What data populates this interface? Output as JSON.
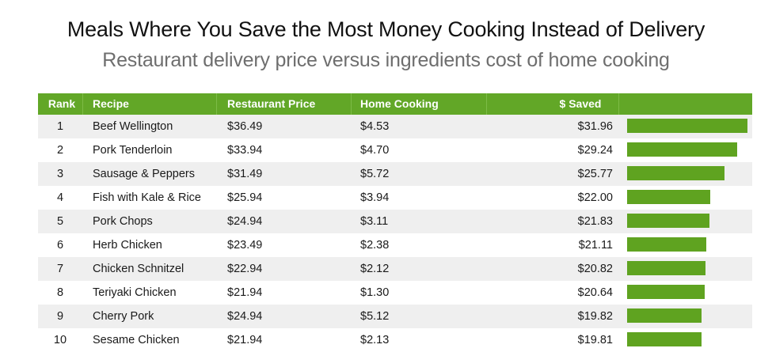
{
  "header": {
    "title": "Meals Where You Save the Most Money Cooking Instead of Delivery",
    "subtitle": "Restaurant delivery price versus ingredients cost of home cooking"
  },
  "table": {
    "columns": [
      "Rank",
      "Recipe",
      "Restaurant Price",
      "Home Cooking",
      "$ Saved"
    ],
    "rows": [
      {
        "rank": "1",
        "recipe": "Beef Wellington",
        "restaurant": "$36.49",
        "home": "$4.53",
        "saved": "$31.96"
      },
      {
        "rank": "2",
        "recipe": "Pork Tenderloin",
        "restaurant": "$33.94",
        "home": "$4.70",
        "saved": "$29.24"
      },
      {
        "rank": "3",
        "recipe": "Sausage & Peppers",
        "restaurant": "$31.49",
        "home": "$5.72",
        "saved": "$25.77"
      },
      {
        "rank": "4",
        "recipe": "Fish with Kale & Rice",
        "restaurant": "$25.94",
        "home": "$3.94",
        "saved": "$22.00"
      },
      {
        "rank": "5",
        "recipe": "Pork Chops",
        "restaurant": "$24.94",
        "home": "$3.11",
        "saved": "$21.83"
      },
      {
        "rank": "6",
        "recipe": "Herb Chicken",
        "restaurant": "$23.49",
        "home": "$2.38",
        "saved": "$21.11"
      },
      {
        "rank": "7",
        "recipe": "Chicken Schnitzel",
        "restaurant": "$22.94",
        "home": "$2.12",
        "saved": "$20.82"
      },
      {
        "rank": "8",
        "recipe": "Teriyaki Chicken",
        "restaurant": "$21.94",
        "home": "$1.30",
        "saved": "$20.64"
      },
      {
        "rank": "9",
        "recipe": "Cherry Pork",
        "restaurant": "$24.94",
        "home": "$5.12",
        "saved": "$19.82"
      },
      {
        "rank": "10",
        "recipe": "Sesame Chicken",
        "restaurant": "$21.94",
        "home": "$2.13",
        "saved": "$19.81"
      }
    ]
  },
  "colors": {
    "header_green": "#62a727",
    "bar_green": "#5fa320",
    "row_stripe": "#efefef"
  },
  "chart_data": {
    "type": "bar",
    "title": "Meals Where You Save the Most Money Cooking Instead of Delivery",
    "subtitle": "Restaurant delivery price versus ingredients cost of home cooking",
    "categories": [
      "Beef Wellington",
      "Pork Tenderloin",
      "Sausage & Peppers",
      "Fish with Kale & Rice",
      "Pork Chops",
      "Herb Chicken",
      "Chicken Schnitzel",
      "Teriyaki Chicken",
      "Cherry Pork",
      "Sesame Chicken"
    ],
    "values": [
      31.96,
      29.24,
      25.77,
      22.0,
      21.83,
      21.11,
      20.82,
      20.64,
      19.82,
      19.81
    ],
    "orientation": "horizontal",
    "grid": false,
    "legend": "none"
  }
}
